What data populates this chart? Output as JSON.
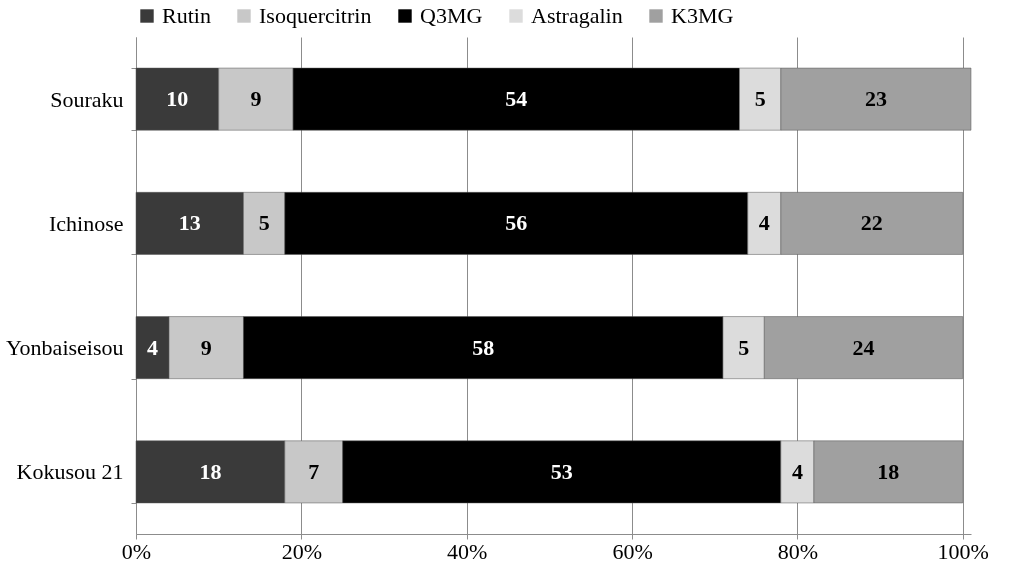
{
  "chart_data": {
    "type": "bar",
    "orientation": "horizontal",
    "stacked": true,
    "data_labels": true,
    "grid": "x",
    "legend": "top",
    "categories": [
      "Souraku",
      "Ichinose",
      "Yonbaiseisou",
      "Kokusou 21"
    ],
    "series": [
      {
        "name": "Rutin",
        "color": "#3a3a3a",
        "values": [
          10,
          13,
          4,
          18
        ]
      },
      {
        "name": "Isoquercitrin",
        "color": "#c8c8c8",
        "values": [
          9,
          5,
          9,
          7
        ]
      },
      {
        "name": "Q3MG",
        "color": "#000000",
        "values": [
          54,
          56,
          58,
          53
        ]
      },
      {
        "name": "Astragalin",
        "color": "#dcdcdc",
        "values": [
          5,
          4,
          5,
          4
        ]
      },
      {
        "name": "K3MG",
        "color": "#a0a0a0",
        "values": [
          23,
          22,
          24,
          18
        ]
      }
    ],
    "xlim": [
      0,
      101
    ],
    "xticks": [
      {
        "value": 0,
        "label": "0%"
      },
      {
        "value": 20,
        "label": "20%"
      },
      {
        "value": 40,
        "label": "40%"
      },
      {
        "value": 60,
        "label": "60%"
      },
      {
        "value": 80,
        "label": "80%"
      },
      {
        "value": 100,
        "label": "100%"
      }
    ]
  }
}
